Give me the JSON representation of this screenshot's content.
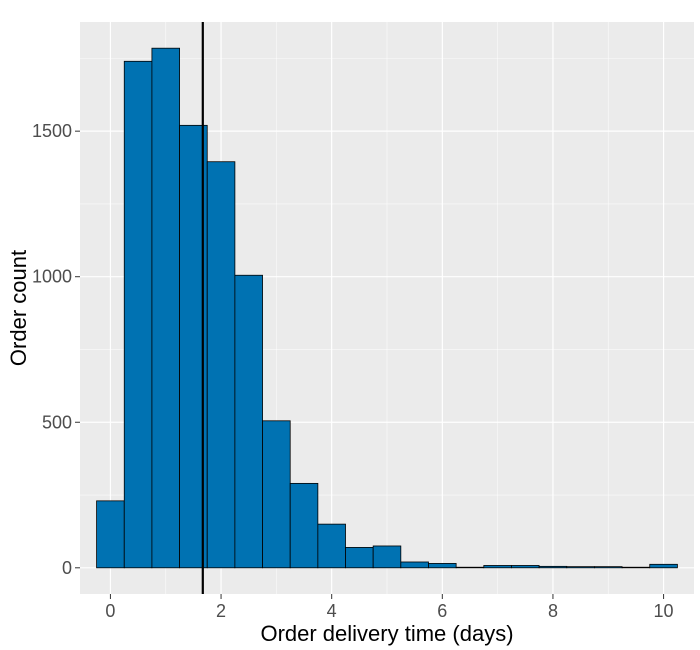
{
  "chart_data": {
    "type": "bar",
    "subtype": "histogram",
    "title": "",
    "xlabel": "Order delivery time (days)",
    "ylabel": "Order count",
    "xlim": [
      -0.55,
      10.55
    ],
    "ylim": [
      -90,
      1875
    ],
    "x_ticks": [
      0,
      2,
      4,
      6,
      8,
      10
    ],
    "y_ticks": [
      0,
      500,
      1000,
      1500
    ],
    "bin_width": 0.5,
    "bin_starts": [
      -0.25,
      0.25,
      0.75,
      1.25,
      1.75,
      2.25,
      2.75,
      3.25,
      3.75,
      4.25,
      4.75,
      5.25,
      5.75,
      6.25,
      6.75,
      7.25,
      7.75,
      8.25,
      8.75,
      9.25,
      9.75
    ],
    "values": [
      230,
      1740,
      1785,
      1520,
      1395,
      1005,
      505,
      290,
      150,
      70,
      75,
      20,
      15,
      2,
      8,
      8,
      5,
      4,
      4,
      2,
      12
    ],
    "vline_x": 1.67,
    "colors": {
      "bar_fill": "#0072b2",
      "bar_stroke": "#000000",
      "panel_bg": "#ebebeb",
      "grid_major": "#ffffff",
      "vline": "#000000"
    },
    "grid": true,
    "legend": "none"
  }
}
